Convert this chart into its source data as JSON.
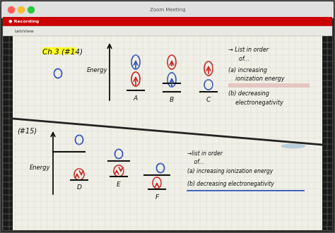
{
  "window_title": "Zoom Meeting",
  "recording_label": "● Recording",
  "letsview_label": "LetsView",
  "ch3_label": "Ch 3 (#14)",
  "energy_label_top": "Energy",
  "energy_label_bot": "Energy",
  "problem_bot": "(#15)",
  "list_order_top": "→ List in order\n      of...",
  "inc_ion_top": "(a) increasing\n    ionization energy",
  "dec_elec_top": "(b) decreasing\n    electronegativity",
  "list_order_bot": "→list in order\n    of...",
  "inc_ion_bot": "(a) increasing ionization energy",
  "dec_elec_bot": "(b) decreasing electronegativity",
  "label_A": "A",
  "label_B": "B",
  "label_C": "C",
  "label_D": "D",
  "label_E": "E",
  "label_F": "F",
  "color_dark": "#111111",
  "color_blue": "#3355bb",
  "color_red": "#cc2222",
  "color_paper": "#f0f0e8",
  "color_grid": "#c8c8b8",
  "color_titlebar": "#e0e0e0",
  "color_recbar": "#cc0000",
  "color_rectext": "#ffffff",
  "color_outer_bg": "#1a1a1a",
  "color_window_bg": "#2a2a2a",
  "color_panel_bg": "#e8e8e4",
  "yellow_highlight": "#ffff00"
}
